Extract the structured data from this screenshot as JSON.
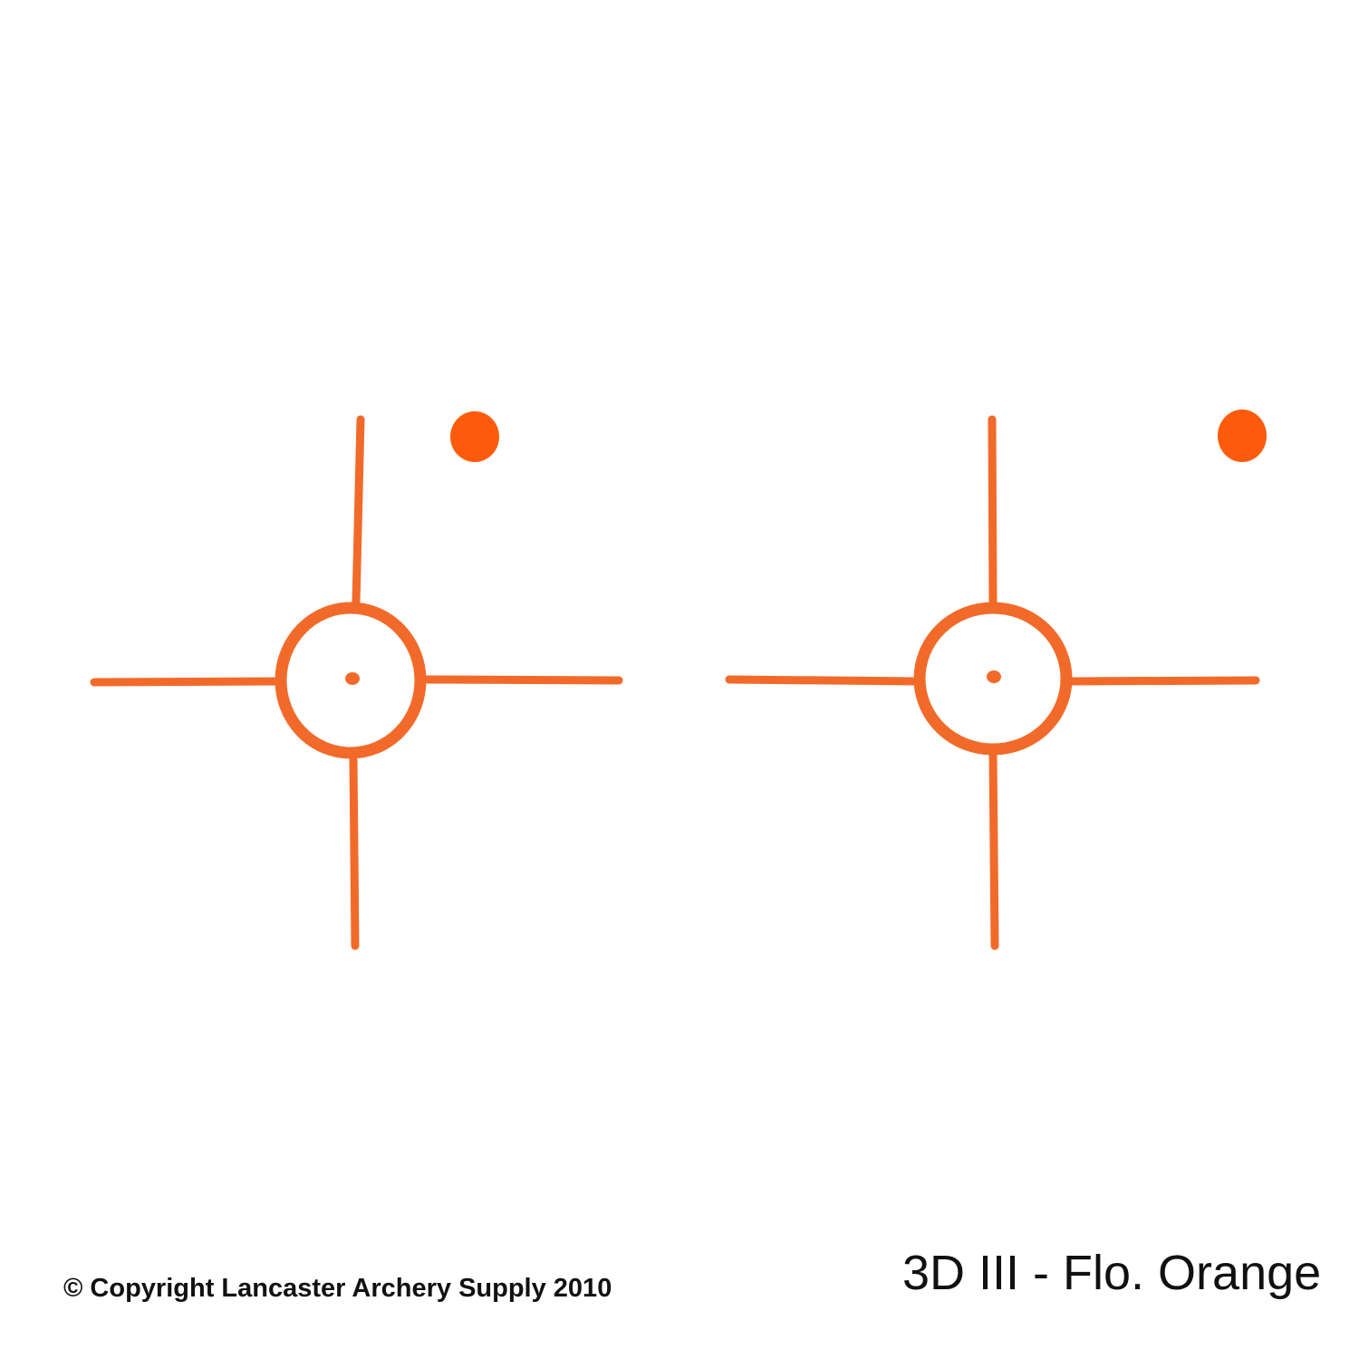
{
  "colors": {
    "reticle": "#f26a2a",
    "dot": "#fd5b0c",
    "text": "#111111"
  },
  "reticles": [
    {
      "name": "left-reticle"
    },
    {
      "name": "right-reticle"
    }
  ],
  "footer": {
    "copyright": "© Copyright Lancaster Archery Supply 2010",
    "caption": "3D III - Flo. Orange"
  }
}
